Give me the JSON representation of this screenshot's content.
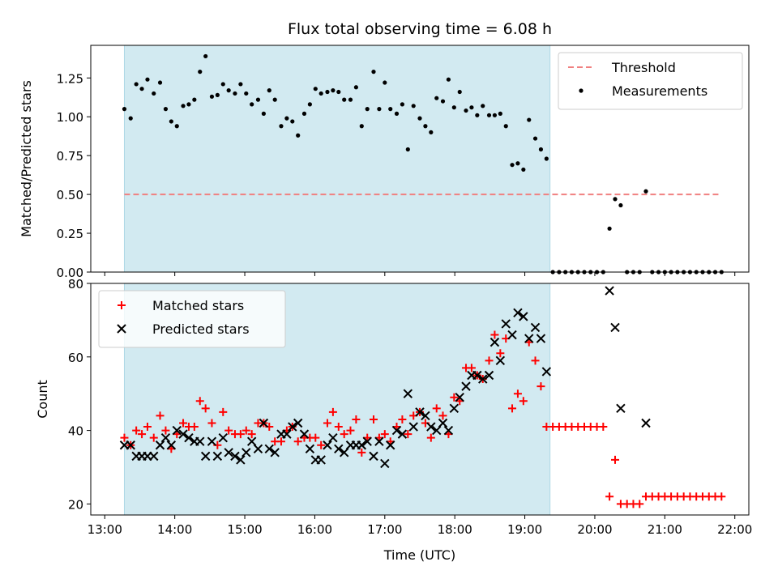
{
  "figure": {
    "title": "Flux total observing time = 6.08 h"
  },
  "chart_data": [
    {
      "type": "scatter",
      "title": "Flux total observing time = 6.08 h",
      "xlabel": "",
      "ylabel": "Matched/Predicted stars",
      "xlim": [
        12.8,
        22.2
      ],
      "ylim": [
        0.0,
        1.46
      ],
      "yticks": [
        0.0,
        0.25,
        0.5,
        0.75,
        1.0,
        1.25
      ],
      "ytick_labels": [
        "0.00",
        "0.25",
        "0.50",
        "0.75",
        "1.00",
        "1.25"
      ],
      "shaded_span": {
        "x": [
          13.28,
          19.36
        ],
        "color": "#add8e6"
      },
      "legend": {
        "position": "top-right",
        "entries": [
          "Threshold",
          "Measurements"
        ]
      },
      "series": [
        {
          "name": "Threshold",
          "kind": "line",
          "style": "dashed",
          "color": "#f08080",
          "x": [
            13.28,
            21.8
          ],
          "y": [
            0.5,
            0.5
          ]
        },
        {
          "name": "Measurements",
          "kind": "scatter",
          "marker": "dot",
          "color": "#000000",
          "x": [
            13.28,
            13.37,
            13.45,
            13.53,
            13.61,
            13.7,
            13.79,
            13.87,
            13.95,
            14.03,
            14.12,
            14.2,
            14.28,
            14.36,
            14.44,
            14.53,
            14.61,
            14.69,
            14.77,
            14.86,
            14.94,
            15.02,
            15.1,
            15.19,
            15.27,
            15.35,
            15.43,
            15.52,
            15.6,
            15.68,
            15.76,
            15.85,
            15.93,
            16.01,
            16.09,
            16.18,
            16.26,
            16.34,
            16.42,
            16.51,
            16.59,
            16.67,
            16.75,
            16.84,
            16.92,
            17.0,
            17.08,
            17.17,
            17.25,
            17.33,
            17.41,
            17.5,
            17.58,
            17.66,
            17.74,
            17.83,
            17.91,
            17.99,
            18.07,
            18.16,
            18.24,
            18.32,
            18.4,
            18.49,
            18.57,
            18.65,
            18.73,
            18.82,
            18.9,
            18.98,
            19.06,
            19.15,
            19.23,
            19.31,
            19.4,
            19.49,
            19.58,
            19.67,
            19.76,
            19.85,
            19.94,
            20.03,
            20.12,
            20.21,
            20.29,
            20.37,
            20.46,
            20.55,
            20.64,
            20.73,
            20.82,
            20.91,
            21.0,
            21.09,
            21.18,
            21.27,
            21.36,
            21.45,
            21.54,
            21.63,
            21.72,
            21.81
          ],
          "y": [
            1.05,
            0.99,
            1.21,
            1.18,
            1.24,
            1.15,
            1.22,
            1.05,
            0.97,
            0.94,
            1.07,
            1.08,
            1.11,
            1.29,
            1.39,
            1.13,
            1.14,
            1.21,
            1.17,
            1.15,
            1.21,
            1.15,
            1.08,
            1.11,
            1.02,
            1.17,
            1.11,
            0.94,
            0.99,
            0.97,
            0.88,
            1.02,
            1.08,
            1.18,
            1.15,
            1.16,
            1.17,
            1.16,
            1.11,
            1.11,
            1.19,
            0.94,
            1.05,
            1.29,
            1.05,
            1.22,
            1.05,
            1.02,
            1.08,
            0.79,
            1.07,
            0.99,
            0.94,
            0.9,
            1.12,
            1.1,
            1.24,
            1.06,
            1.16,
            1.04,
            1.06,
            1.01,
            1.07,
            1.01,
            1.01,
            1.02,
            0.94,
            0.69,
            0.7,
            0.66,
            0.98,
            0.86,
            0.79,
            0.73,
            0.0,
            0.0,
            0.0,
            0.0,
            0.0,
            0.0,
            0.0,
            0.0,
            0.0,
            0.28,
            0.47,
            0.43,
            0.0,
            0.0,
            0.0,
            0.52,
            0.0,
            0.0,
            0.0,
            0.0,
            0.0,
            0.0,
            0.0,
            0.0,
            0.0,
            0.0,
            0.0,
            0.0
          ]
        }
      ]
    },
    {
      "type": "scatter",
      "title": "",
      "xlabel": "Time (UTC)",
      "ylabel": "Count",
      "xlim": [
        12.8,
        22.2
      ],
      "ylim": [
        17.0,
        80.0
      ],
      "xticks": [
        13,
        14,
        15,
        16,
        17,
        18,
        19,
        20,
        21,
        22
      ],
      "xtick_labels": [
        "13:00",
        "14:00",
        "15:00",
        "16:00",
        "17:00",
        "18:00",
        "19:00",
        "20:00",
        "21:00",
        "22:00"
      ],
      "yticks": [
        20,
        40,
        60,
        80
      ],
      "ytick_labels": [
        "20",
        "40",
        "60",
        "80"
      ],
      "shaded_span": {
        "x": [
          13.28,
          19.36
        ],
        "color": "#add8e6"
      },
      "legend": {
        "position": "top-left",
        "entries": [
          "Matched stars",
          "Predicted stars"
        ]
      },
      "series": [
        {
          "name": "Matched stars",
          "kind": "scatter",
          "marker": "plus",
          "color": "#ff0000",
          "x": [
            13.28,
            13.37,
            13.45,
            13.53,
            13.61,
            13.7,
            13.79,
            13.87,
            13.95,
            14.03,
            14.12,
            14.2,
            14.28,
            14.36,
            14.44,
            14.53,
            14.61,
            14.69,
            14.77,
            14.86,
            14.94,
            15.02,
            15.1,
            15.19,
            15.27,
            15.35,
            15.43,
            15.52,
            15.6,
            15.68,
            15.76,
            15.85,
            15.93,
            16.01,
            16.09,
            16.18,
            16.26,
            16.34,
            16.42,
            16.51,
            16.59,
            16.67,
            16.75,
            16.84,
            16.92,
            17.0,
            17.08,
            17.17,
            17.25,
            17.33,
            17.41,
            17.5,
            17.58,
            17.66,
            17.74,
            17.83,
            17.91,
            17.99,
            18.07,
            18.16,
            18.24,
            18.32,
            18.4,
            18.49,
            18.57,
            18.65,
            18.73,
            18.82,
            18.9,
            18.98,
            19.06,
            19.15,
            19.23,
            19.31,
            19.4,
            19.49,
            19.58,
            19.67,
            19.76,
            19.85,
            19.94,
            20.03,
            20.12,
            20.21,
            20.29,
            20.37,
            20.46,
            20.55,
            20.64,
            20.73,
            20.82,
            20.91,
            21.0,
            21.09,
            21.18,
            21.27,
            21.36,
            21.45,
            21.54,
            21.63,
            21.72,
            21.81
          ],
          "y": [
            38,
            36,
            40,
            39,
            41,
            38,
            44,
            40,
            35,
            39,
            42,
            41,
            41,
            48,
            46,
            42,
            36,
            45,
            40,
            39,
            39,
            40,
            39,
            42,
            42,
            41,
            37,
            37,
            40,
            41,
            37,
            38,
            38,
            38,
            36,
            42,
            45,
            41,
            39,
            40,
            43,
            34,
            38,
            43,
            38,
            39,
            37,
            41,
            43,
            39,
            44,
            45,
            42,
            38,
            46,
            44,
            39,
            49,
            48,
            57,
            57,
            55,
            54,
            59,
            66,
            61,
            65,
            46,
            50,
            48,
            64,
            59,
            52,
            41,
            41,
            41,
            41,
            41,
            41,
            41,
            41,
            41,
            41,
            22,
            32,
            20,
            20,
            20,
            20,
            22,
            22,
            22,
            22,
            22,
            22,
            22,
            22,
            22,
            22,
            22,
            22,
            22
          ]
        },
        {
          "name": "Predicted stars",
          "kind": "scatter",
          "marker": "x",
          "color": "#000000",
          "x": [
            13.28,
            13.37,
            13.45,
            13.53,
            13.61,
            13.7,
            13.79,
            13.87,
            13.95,
            14.03,
            14.12,
            14.2,
            14.28,
            14.36,
            14.44,
            14.53,
            14.61,
            14.69,
            14.77,
            14.86,
            14.94,
            15.02,
            15.1,
            15.19,
            15.27,
            15.35,
            15.43,
            15.52,
            15.6,
            15.68,
            15.76,
            15.85,
            15.93,
            16.01,
            16.09,
            16.18,
            16.26,
            16.34,
            16.42,
            16.51,
            16.59,
            16.67,
            16.75,
            16.84,
            16.92,
            17.0,
            17.08,
            17.17,
            17.25,
            17.33,
            17.41,
            17.5,
            17.58,
            17.66,
            17.74,
            17.83,
            17.91,
            17.99,
            18.07,
            18.16,
            18.24,
            18.32,
            18.4,
            18.49,
            18.57,
            18.65,
            18.73,
            18.82,
            18.9,
            18.98,
            19.06,
            19.15,
            19.23,
            19.31,
            19.4,
            20.21,
            20.29,
            20.37,
            20.73
          ],
          "y": [
            36,
            36,
            33,
            33,
            33,
            33,
            36,
            38,
            36,
            40,
            39,
            38,
            37,
            37,
            33,
            37,
            33,
            38,
            34,
            33,
            32,
            34,
            37,
            35,
            42,
            35,
            34,
            39,
            39,
            41,
            42,
            39,
            35,
            32,
            32,
            36,
            38,
            35,
            34,
            36,
            36,
            36,
            37,
            33,
            37,
            31,
            36,
            40,
            39,
            50,
            41,
            45,
            44,
            41,
            40,
            42,
            40,
            46,
            49,
            52,
            55,
            55,
            54,
            55,
            64,
            59,
            69,
            66,
            72,
            71,
            65,
            68,
            65,
            56,
            null,
            78,
            68,
            46,
            42
          ]
        }
      ]
    }
  ]
}
